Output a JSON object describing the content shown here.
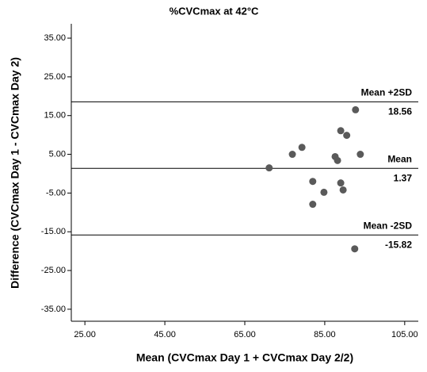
{
  "chart_data": {
    "type": "scatter",
    "title": "%CVCmax at 42°C",
    "x_label": "Mean (CVCmax Day 1 + CVCmax Day 2/2)",
    "y_label": "Difference (CVCmax Day 1 - CVCmax Day 2)",
    "xlim": [
      21.6,
      108.4
    ],
    "ylim": [
      -38.1,
      38.7
    ],
    "xticks": [
      {
        "value": 25,
        "label": "25.00"
      },
      {
        "value": 45,
        "label": "45.00"
      },
      {
        "value": 65,
        "label": "65.00"
      },
      {
        "value": 85,
        "label": "85.00"
      },
      {
        "value": 105,
        "label": "105.00"
      }
    ],
    "yticks": [
      {
        "value": 35,
        "label": "35.00"
      },
      {
        "value": 25,
        "label": "25.00"
      },
      {
        "value": 15,
        "label": "15.00"
      },
      {
        "value": 5,
        "label": "5.00"
      },
      {
        "value": -5,
        "label": "-5.00"
      },
      {
        "value": -15,
        "label": "-15.00"
      },
      {
        "value": -25,
        "label": "-25.00"
      },
      {
        "value": -35,
        "label": "-35.00"
      }
    ],
    "series": [
      {
        "color": "#5a5a5a",
        "x": [
          71.1,
          76.9,
          79.3,
          82.0,
          82.0,
          84.8,
          87.6,
          88.2,
          89.0,
          89.0,
          89.6,
          90.5,
          92.7,
          93.9,
          92.5
        ],
        "values": [
          1.5,
          5.0,
          6.8,
          -2.0,
          -7.9,
          -4.8,
          4.4,
          3.4,
          11.1,
          -2.4,
          -4.2,
          9.9,
          16.5,
          5.0,
          -19.4
        ]
      }
    ],
    "reference_lines": [
      {
        "label": "Mean +2SD",
        "value": 18.56
      },
      {
        "label": "Mean",
        "value": 1.37
      },
      {
        "label": "Mean -2SD",
        "value": -15.82
      }
    ]
  }
}
